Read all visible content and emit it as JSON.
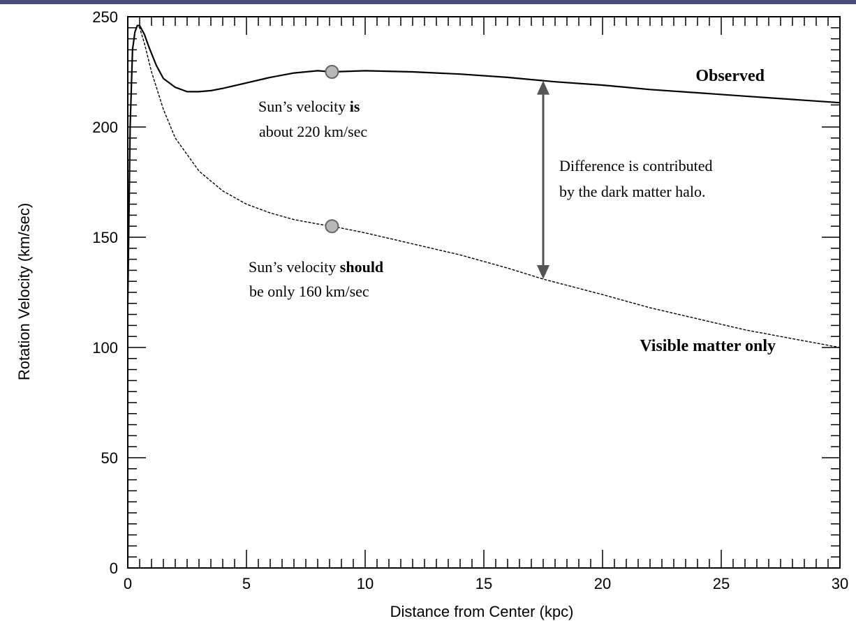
{
  "chart_data": {
    "type": "line",
    "title": "",
    "xlabel": "Distance from Center (kpc)",
    "ylabel": "Rotation Velocity (km/sec)",
    "xlim": [
      0,
      30
    ],
    "ylim": [
      0,
      250
    ],
    "xticks": [
      0,
      5,
      10,
      15,
      20,
      25,
      30
    ],
    "yticks": [
      0,
      50,
      100,
      150,
      200,
      250
    ],
    "grid": false,
    "series": [
      {
        "name": "Observed",
        "style": "solid",
        "color": "#000000",
        "x": [
          0,
          0.1,
          0.2,
          0.3,
          0.4,
          0.5,
          0.7,
          0.9,
          1.2,
          1.5,
          2,
          2.5,
          3,
          3.5,
          4,
          5,
          6,
          7,
          8,
          8.6,
          10,
          12,
          14,
          16,
          18,
          20,
          22,
          24,
          26,
          28,
          30
        ],
        "y": [
          120,
          200,
          235,
          243,
          246,
          246,
          242,
          236,
          228,
          222,
          218,
          216,
          216,
          216.5,
          217.5,
          220,
          222.5,
          224.5,
          225.5,
          225,
          225.5,
          225,
          224,
          222.5,
          220.5,
          219,
          217,
          215.5,
          214,
          212.5,
          211
        ]
      },
      {
        "name": "Visible matter only",
        "style": "dashed",
        "color": "#000000",
        "x": [
          0,
          0.1,
          0.2,
          0.3,
          0.4,
          0.5,
          0.7,
          1.0,
          1.5,
          2,
          3,
          4,
          5,
          6,
          7,
          8,
          8.6,
          10,
          12,
          14,
          16,
          17.5,
          20,
          22,
          24,
          26,
          28,
          30
        ],
        "y": [
          120,
          200,
          235,
          243,
          246,
          245,
          238,
          225,
          208,
          195,
          180,
          171,
          165,
          161,
          158,
          156,
          155,
          152,
          147,
          142,
          136,
          131,
          124,
          118,
          113,
          108,
          104,
          100
        ]
      }
    ],
    "markers": [
      {
        "x": 8.6,
        "y": 225,
        "series": "Observed"
      },
      {
        "x": 8.6,
        "y": 155,
        "series": "Visible matter only"
      }
    ],
    "arrow": {
      "x": 17.5,
      "y_from": 131,
      "y_to": 221
    },
    "annotations": {
      "observed_label": "Observed",
      "visible_label": "Visible matter only",
      "sun_is_a": "Sun’s velocity ",
      "sun_is_b": "is",
      "sun_is_line2": "about 220 km/sec",
      "sun_should_a": "Sun’s velocity ",
      "sun_should_b": "should",
      "sun_should_line2": "be only 160 km/sec",
      "difference_line1": "Difference is contributed",
      "difference_line2": "by the dark matter halo."
    }
  }
}
